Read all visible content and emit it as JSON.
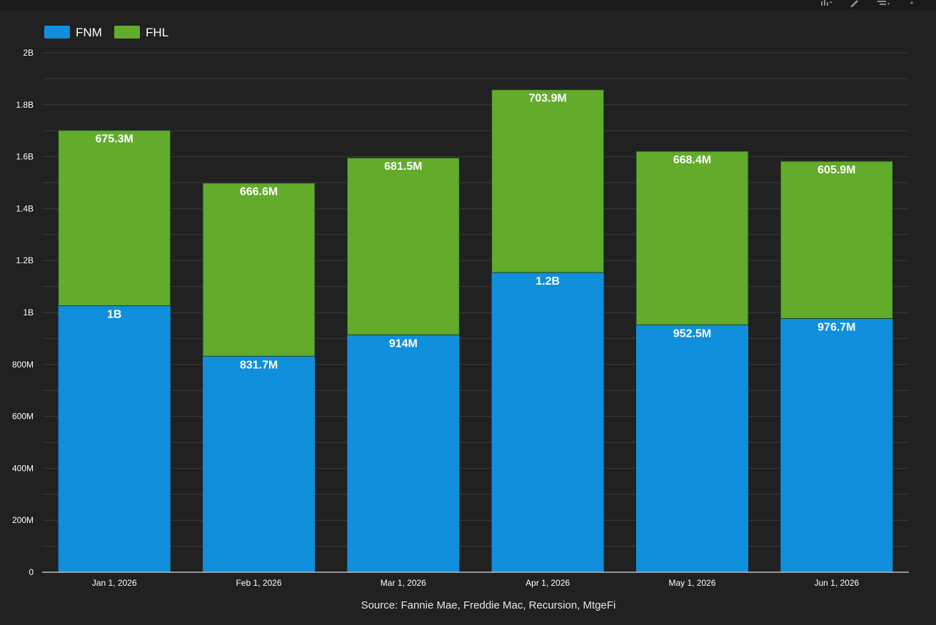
{
  "toolbar": {
    "icons": [
      "chart-type-icon",
      "edit-icon",
      "filter-icon",
      "more-icon"
    ]
  },
  "colors": {
    "background": "#212121",
    "gridline": "#3a3a3a",
    "axis": "#bdbdbd",
    "fnm": "#0f8fdc",
    "fhl": "#62ab2b"
  },
  "chart_data": {
    "type": "bar",
    "stacked": true,
    "categories": [
      "Jan 1, 2026",
      "Feb 1, 2026",
      "Mar 1, 2026",
      "Apr 1, 2026",
      "May 1, 2026",
      "Jun 1, 2026"
    ],
    "series": [
      {
        "name": "FNM",
        "color": "#0f8fdc",
        "values": [
          1026000000,
          831700000,
          914000000,
          1154000000,
          952500000,
          976700000
        ],
        "labels": [
          "1B",
          "831.7M",
          "914M",
          "1.2B",
          "952.5M",
          "976.7M"
        ]
      },
      {
        "name": "FHL",
        "color": "#62ab2b",
        "values": [
          675300000,
          666600000,
          681500000,
          703900000,
          668400000,
          605900000
        ],
        "labels": [
          "675.3M",
          "666.6M",
          "681.5M",
          "703.9M",
          "668.4M",
          "605.9M"
        ]
      }
    ],
    "ylim": [
      0,
      2000000000
    ],
    "yticks": [
      0,
      200000000,
      400000000,
      600000000,
      800000000,
      1000000000,
      1200000000,
      1400000000,
      1600000000,
      1800000000,
      2000000000
    ],
    "ytick_labels": [
      "0",
      "200M",
      "400M",
      "600M",
      "800M",
      "1B",
      "1.2B",
      "1.4B",
      "1.6B",
      "1.8B",
      "2B"
    ],
    "grid": true,
    "legend": "top-left",
    "source": "Source: Fannie Mae, Freddie Mac, Recursion, MtgeFi"
  }
}
